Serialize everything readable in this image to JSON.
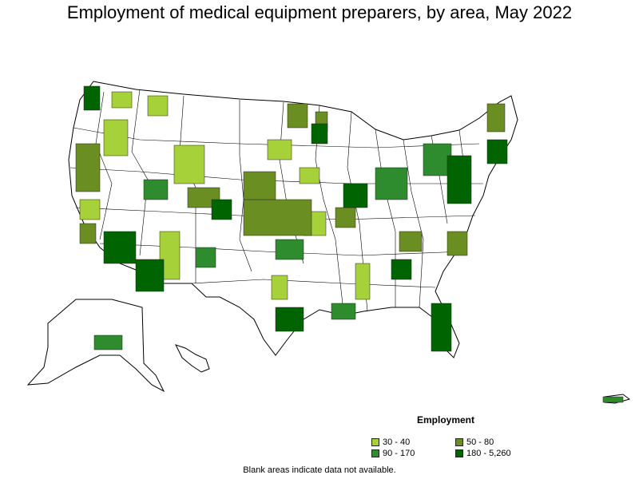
{
  "title": "Employment of medical equipment preparers, by area, May 2022",
  "legend": {
    "title": "Employment",
    "items": [
      {
        "label": "30 - 40",
        "color": "#a6d138"
      },
      {
        "label": "50 - 80",
        "color": "#6b8e23"
      },
      {
        "label": "90 - 170",
        "color": "#2e8b2e"
      },
      {
        "label": "180 - 5,260",
        "color": "#006400"
      }
    ]
  },
  "note": "Blank areas indicate data not available."
}
